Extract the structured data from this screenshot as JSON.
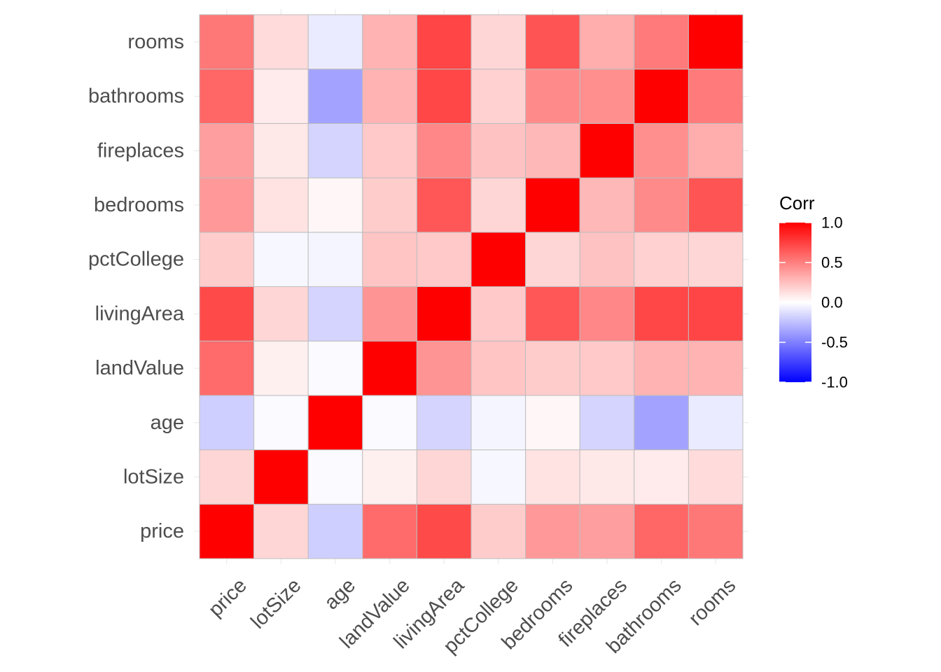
{
  "chart_data": {
    "type": "heatmap",
    "variables": [
      "price",
      "lotSize",
      "age",
      "landValue",
      "livingArea",
      "pctCollege",
      "bedrooms",
      "fireplaces",
      "bathrooms",
      "rooms"
    ],
    "x_categories": [
      "price",
      "lotSize",
      "age",
      "landValue",
      "livingArea",
      "pctCollege",
      "bedrooms",
      "fireplaces",
      "bathrooms",
      "rooms"
    ],
    "y_categories_bottom_to_top": [
      "price",
      "lotSize",
      "age",
      "landValue",
      "livingArea",
      "pctCollege",
      "bedrooms",
      "fireplaces",
      "bathrooms",
      "rooms"
    ],
    "matrix": [
      [
        1.0,
        0.16,
        -0.19,
        0.58,
        0.71,
        0.2,
        0.4,
        0.38,
        0.6,
        0.53
      ],
      [
        0.16,
        1.0,
        -0.02,
        0.06,
        0.16,
        -0.03,
        0.11,
        0.09,
        0.08,
        0.14
      ],
      [
        -0.19,
        -0.02,
        1.0,
        -0.02,
        -0.17,
        -0.04,
        0.03,
        -0.17,
        -0.36,
        -0.08
      ],
      [
        0.58,
        0.06,
        -0.02,
        1.0,
        0.42,
        0.23,
        0.2,
        0.21,
        0.3,
        0.3
      ],
      [
        0.71,
        0.16,
        -0.17,
        0.42,
        1.0,
        0.21,
        0.66,
        0.47,
        0.72,
        0.73
      ],
      [
        0.2,
        -0.03,
        -0.04,
        0.23,
        0.21,
        1.0,
        0.16,
        0.24,
        0.18,
        0.16
      ],
      [
        0.4,
        0.11,
        0.03,
        0.2,
        0.66,
        0.16,
        1.0,
        0.28,
        0.46,
        0.67
      ],
      [
        0.38,
        0.09,
        -0.17,
        0.21,
        0.47,
        0.24,
        0.28,
        1.0,
        0.44,
        0.32
      ],
      [
        0.6,
        0.08,
        -0.36,
        0.3,
        0.72,
        0.18,
        0.46,
        0.44,
        1.0,
        0.52
      ],
      [
        0.53,
        0.14,
        -0.08,
        0.3,
        0.73,
        0.16,
        0.67,
        0.32,
        0.52,
        1.0
      ]
    ],
    "legend": {
      "title": "Corr",
      "ticks": [
        1.0,
        0.5,
        0.0,
        -0.5,
        -1.0
      ],
      "tick_labels": [
        "1.0",
        "0.5",
        "0.0",
        "-0.5",
        "-1.0"
      ],
      "range": [
        -1,
        1
      ],
      "placement": "right"
    },
    "colors": {
      "low": "#0000ff",
      "mid": "#ffffff",
      "high": "#ff0000",
      "cell_border": "#bdbdbd"
    },
    "grid": true,
    "xlabel": "",
    "ylabel": ""
  }
}
